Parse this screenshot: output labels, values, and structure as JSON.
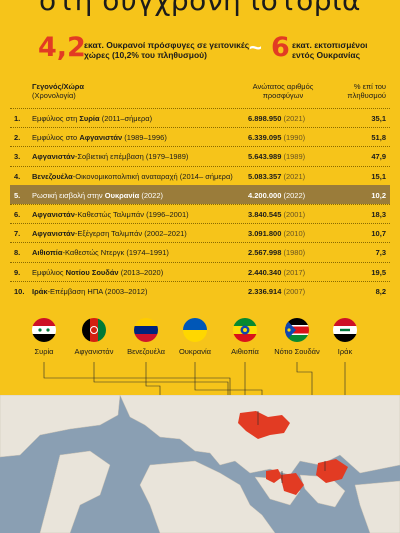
{
  "title": "στη σύγχρονη ιστορία",
  "stats": {
    "refugees_value": "4,2",
    "refugees_text_1": "εκατ. Ουκρανοί πρόσφυγες σε γειτονικές",
    "refugees_text_2": "χώρες (10,2% του πληθυσμού)",
    "tilde": "~",
    "displaced_value": "6",
    "displaced_text_1": "εκατ. εκτοπισμένοι",
    "displaced_text_2": "εντός Ουκρανίας"
  },
  "headers": {
    "event_1": "Γεγονός/Χώρα",
    "event_2": "(Χρονολογία)",
    "ref_1": "Ανώτατος αριθμός",
    "ref_2": "προσφύγων",
    "pct_1": "% επί του",
    "pct_2": "πληθυσμού"
  },
  "rows": [
    {
      "n": "1.",
      "pre": "Εμφύλιος στη ",
      "bold": "Συρία",
      "post": " (2011–σήμερα)",
      "refugees": "6.898.950",
      "year": "(2021)",
      "pct": "35,1",
      "highlight": false
    },
    {
      "n": "2.",
      "pre": "Εμφύλιος στο ",
      "bold": "Αφγανιστάν",
      "post": " (1989–1996)",
      "refugees": "6.339.095",
      "year": "(1990)",
      "pct": "51,8",
      "highlight": false
    },
    {
      "n": "3.",
      "pre": "",
      "bold": "Αφγανιστάν",
      "post": "-Σοβιετική επέμβαση (1979–1989)",
      "refugees": "5.643.989",
      "year": "(1989)",
      "pct": "47,9",
      "highlight": false
    },
    {
      "n": "4.",
      "pre": "",
      "bold": "Βενεζουέλα",
      "post": "-Οικονομικοπολιτική αναταραχή (2014– σήμερα)",
      "refugees": "5.083.357",
      "year": "(2021)",
      "pct": "15,1",
      "highlight": false
    },
    {
      "n": "5.",
      "pre": "Ρωσική εισβολή στην ",
      "bold": "Ουκρανία",
      "post": " (2022)",
      "refugees": "4.200.000",
      "year": "(2022)",
      "pct": "10,2",
      "highlight": true
    },
    {
      "n": "6.",
      "pre": "",
      "bold": "Αφγανιστάν",
      "post": "-Καθεστώς Ταλιμπάν (1996–2001)",
      "refugees": "3.840.545",
      "year": "(2001)",
      "pct": "18,3",
      "highlight": false
    },
    {
      "n": "7.",
      "pre": "",
      "bold": "Αφγανιστάν",
      "post": "-Εξέγερση Ταλιμπάν (2002–2021)",
      "refugees": "3.091.800",
      "year": "(2010)",
      "pct": "10,7",
      "highlight": false
    },
    {
      "n": "8.",
      "pre": "",
      "bold": "Αιθιοπία",
      "post": "-Καθεστώς Ντεργκ (1974–1991)",
      "refugees": "2.567.998",
      "year": "(1980)",
      "pct": "7,3",
      "highlight": false
    },
    {
      "n": "9.",
      "pre": "Εμφύλιος ",
      "bold": "Νοτίου Σουδάν",
      "post": " (2013–2020)",
      "refugees": "2.440.340",
      "year": "(2017)",
      "pct": "19,5",
      "highlight": false
    },
    {
      "n": "10.",
      "pre": "",
      "bold": "Ιράκ",
      "post": "-Επέμβαση ΗΠΑ (2003–2012)",
      "refugees": "2.336.914",
      "year": "(2007)",
      "pct": "8,2",
      "highlight": false
    }
  ],
  "flags": [
    {
      "label": "Συρία"
    },
    {
      "label": "Αφγανιστάν"
    },
    {
      "label": "Βενεζουέλα"
    },
    {
      "label": "Ουκρανία"
    },
    {
      "label": "Αιθιοπία"
    },
    {
      "label": "Νότιο Σουδάν"
    },
    {
      "label": "Ιράκ"
    }
  ],
  "colors": {
    "background": "#f6c41a",
    "accent_red": "#e23b23",
    "highlight_row": "#9a7c3a",
    "map_land": "#e9e4da",
    "map_sea": "#8a9fb3"
  }
}
